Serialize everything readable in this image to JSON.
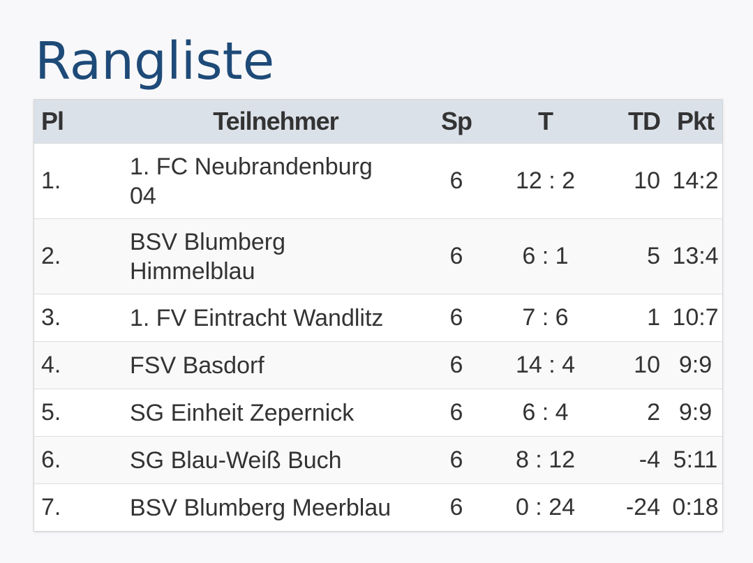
{
  "title": "Rangliste",
  "table": {
    "headers": {
      "pl": "Pl",
      "team": "Teilnehmer",
      "sp": "Sp",
      "t": "T",
      "td": "TD",
      "pkt": "Pkt"
    },
    "rows": [
      {
        "pl": "1.",
        "team_line1": "1. FC Neubrandenburg",
        "team_line2": "04",
        "sp": "6",
        "t": "12 : 2",
        "td": "10",
        "pkt": "14:2"
      },
      {
        "pl": "2.",
        "team_line1": "BSV Blumberg",
        "team_line2": "Himmelblau",
        "sp": "6",
        "t": "6 : 1",
        "td": "5",
        "pkt": "13:4"
      },
      {
        "pl": "3.",
        "team_line1": "1. FV Eintracht Wandlitz",
        "sp": "6",
        "t": "7 : 6",
        "td": "1",
        "pkt": "10:7"
      },
      {
        "pl": "4.",
        "team_line1": "FSV Basdorf",
        "sp": "6",
        "t": "14 : 4",
        "td": "10",
        "pkt": "9:9"
      },
      {
        "pl": "5.",
        "team_line1": "SG Einheit Zepernick",
        "sp": "6",
        "t": "6 : 4",
        "td": "2",
        "pkt": "9:9"
      },
      {
        "pl": "6.",
        "team_line1": "SG Blau-Weiß Buch",
        "sp": "6",
        "t": "8 : 12",
        "td": "-4",
        "pkt": "5:11"
      },
      {
        "pl": "7.",
        "team_line1": "BSV Blumberg Meerblau",
        "sp": "6",
        "t": "0 : 24",
        "td": "-24",
        "pkt": "0:18"
      }
    ]
  },
  "colors": {
    "title": "#1e4a78",
    "header_bg": "#dbe1e9",
    "row_alt_bg": "#f9f9f9",
    "border": "#dddddd"
  }
}
